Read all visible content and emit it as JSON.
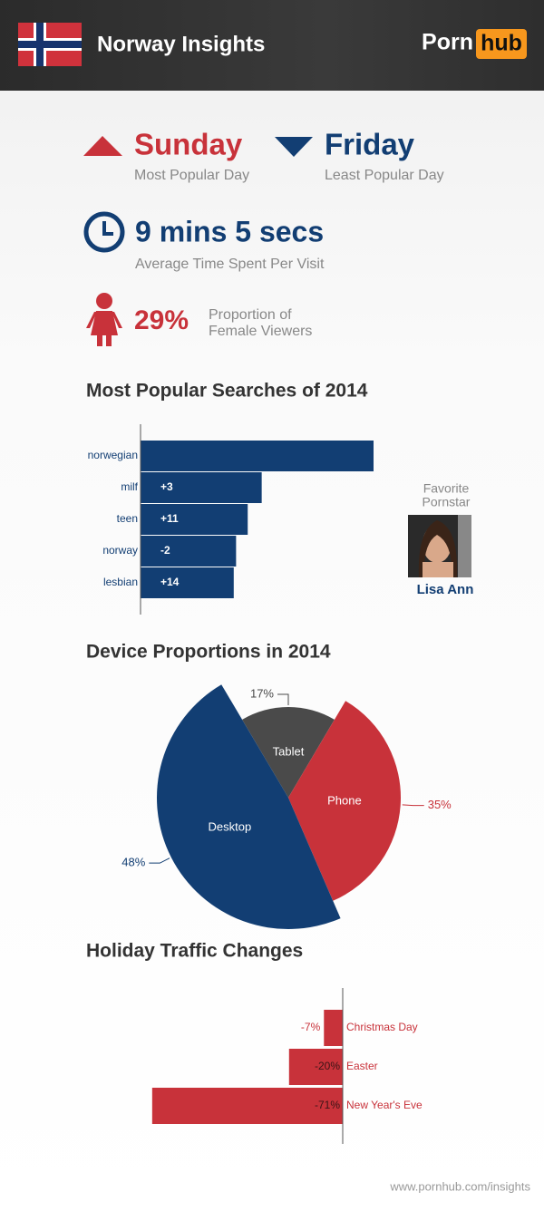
{
  "header": {
    "title": "Norway Insights",
    "logo_left": "Porn",
    "logo_right": "hub"
  },
  "stats": {
    "most_popular_day": "Sunday",
    "most_popular_label": "Most Popular Day",
    "least_popular_day": "Friday",
    "least_popular_label": "Least Popular Day",
    "time": "9 mins 5 secs",
    "time_label": "Average Time Spent Per Visit",
    "female": "29%",
    "female_label_1": "Proportion of",
    "female_label_2": "Female Viewers"
  },
  "favorite": {
    "label_1": "Favorite",
    "label_2": "Pornstar",
    "name": "Lisa Ann"
  },
  "chart_data": [
    {
      "type": "bar",
      "title": "Most Popular Searches of 2014",
      "categories": [
        "norwegian",
        "milf",
        "teen",
        "norway",
        "lesbian"
      ],
      "values": [
        100,
        52,
        46,
        41,
        40
      ],
      "rank_changes": [
        null,
        "+3",
        "+11",
        "-2",
        "+14"
      ],
      "xlim": [
        0,
        100
      ],
      "color": "#123e73"
    },
    {
      "type": "pie",
      "title": "Device Proportions in 2014",
      "categories": [
        "Tablet",
        "Phone",
        "Desktop"
      ],
      "values": [
        17,
        35,
        48
      ],
      "value_labels": [
        "17%",
        "35%",
        "48%"
      ],
      "colors": [
        "#4a4a4a",
        "#c8323a",
        "#123e73"
      ]
    },
    {
      "type": "bar",
      "title": "Holiday Traffic Changes",
      "categories": [
        "Christmas Day",
        "Easter",
        "New Year's Eve"
      ],
      "values": [
        -7,
        -20,
        -71
      ],
      "value_labels": [
        "-7%",
        "-20%",
        "-71%"
      ],
      "xlim": [
        -75,
        0
      ],
      "color": "#c8323a"
    }
  ],
  "footer": "www.pornhub.com/insights"
}
